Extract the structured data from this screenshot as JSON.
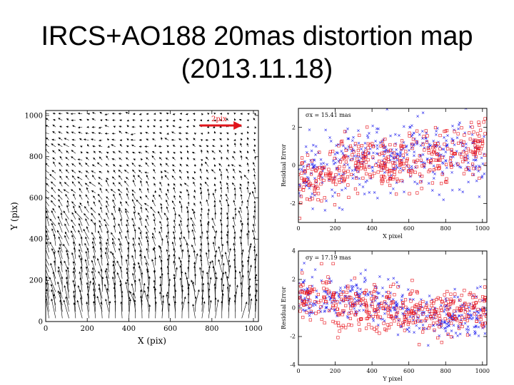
{
  "slide": {
    "title_line1": "IRCS+AO188 20mas distortion map",
    "title_line2": "(2013.11.18)"
  },
  "chart_data": [
    {
      "type": "vector-map",
      "xlabel": "X (pix)",
      "ylabel": "Y (pix)",
      "xlim": [
        0,
        1024
      ],
      "ylim": [
        0,
        1024
      ],
      "xticks": [
        0,
        200,
        400,
        600,
        800,
        1000
      ],
      "yticks": [
        0,
        200,
        400,
        600,
        800,
        1000
      ],
      "scale_arrow_label": "2pix",
      "scale_arrow_color": "#e0151b",
      "vector_color": "#000000",
      "grid_step": 32,
      "vector_field": "dense arrows across the detector, mostly pointing up-left near bottom-center, with longer vectors at the bottom and lower-left region"
    },
    {
      "type": "scatter",
      "annotation": "σx = 15.41 mas",
      "xlabel": "X pixel",
      "ylabel": "Residual Error",
      "xlim": [
        0,
        1024
      ],
      "ylim": [
        -3,
        3
      ],
      "xticks": [
        0,
        200,
        400,
        600,
        800,
        1000
      ],
      "yticks": [
        -2,
        0,
        2
      ],
      "series": [
        {
          "marker": "cross",
          "color": "#2222ee",
          "trend": [
            [
              0,
              -0.5
            ],
            [
              200,
              -0.1
            ],
            [
              400,
              0.4
            ],
            [
              600,
              0.6
            ],
            [
              800,
              0.6
            ],
            [
              1000,
              0.2
            ]
          ],
          "spread": 0.9
        },
        {
          "marker": "square",
          "color": "#e8141c",
          "trend": [
            [
              0,
              -1.0
            ],
            [
              200,
              -0.2
            ],
            [
              400,
              0.1
            ],
            [
              600,
              0.2
            ],
            [
              800,
              0.5
            ],
            [
              1000,
              0.9
            ]
          ],
          "spread": 0.7
        }
      ]
    },
    {
      "type": "scatter",
      "annotation": "σy = 17.19 mas",
      "xlabel": "Y pixel",
      "ylabel": "Residual Error",
      "xlim": [
        0,
        1024
      ],
      "ylim": [
        -4,
        4
      ],
      "xticks": [
        0,
        200,
        400,
        600,
        800,
        1000
      ],
      "yticks": [
        -4,
        -2,
        0,
        2,
        4
      ],
      "series": [
        {
          "marker": "cross",
          "color": "#2222ee",
          "trend": [
            [
              0,
              0.8
            ],
            [
              200,
              0.6
            ],
            [
              400,
              0.7
            ],
            [
              600,
              -0.3
            ],
            [
              800,
              -0.6
            ],
            [
              1000,
              -0.6
            ]
          ],
          "spread": 0.8
        },
        {
          "marker": "square",
          "color": "#e8141c",
          "trend": [
            [
              0,
              0.9
            ],
            [
              200,
              0.2
            ],
            [
              400,
              0.0
            ],
            [
              600,
              -0.3
            ],
            [
              800,
              -0.4
            ],
            [
              1000,
              -0.1
            ]
          ],
          "spread": 0.8
        }
      ]
    }
  ]
}
